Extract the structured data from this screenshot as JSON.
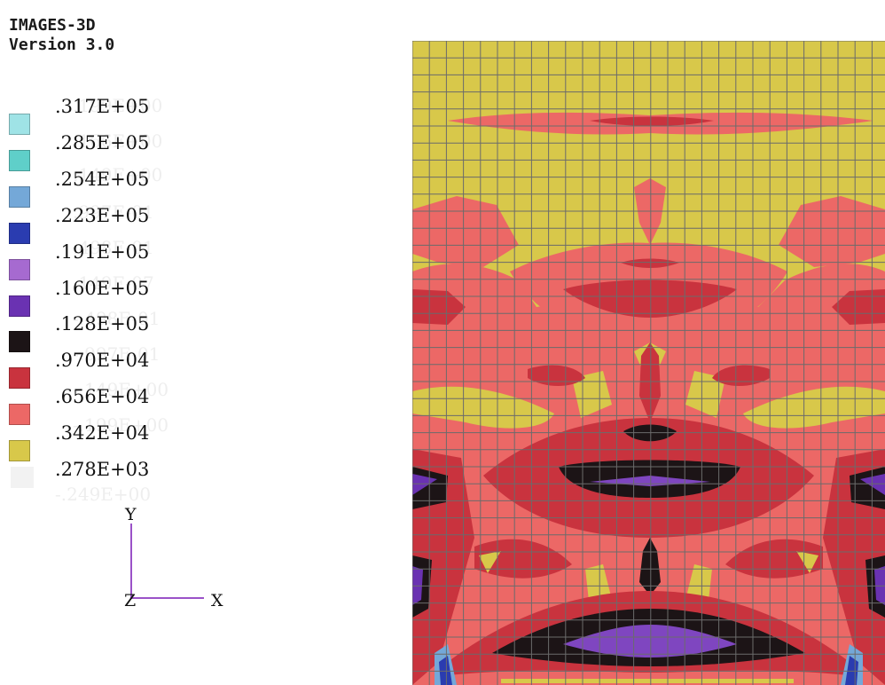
{
  "app": {
    "title": "IMAGES-3D",
    "version": "Version 3.0"
  },
  "legend": {
    "entries": [
      {
        "value": ".317E+05",
        "color": "#9fe3e6"
      },
      {
        "value": ".285E+05",
        "color": "#5fcfc9"
      },
      {
        "value": ".254E+05",
        "color": "#74a8d8"
      },
      {
        "value": ".223E+05",
        "color": "#2a3cb0"
      },
      {
        "value": ".191E+05",
        "color": "#a66ad0"
      },
      {
        "value": ".160E+05",
        "color": "#6a32b2"
      },
      {
        "value": ".128E+05",
        "color": "#1c1416"
      },
      {
        "value": ".970E+04",
        "color": "#c9333e"
      },
      {
        "value": ".656E+04",
        "color": "#ec6866"
      },
      {
        "value": ".342E+04",
        "color": "#d8c84a"
      },
      {
        "value": ".278E+03",
        "color": null
      }
    ]
  },
  "axes": {
    "y": "Y",
    "x": "X",
    "z": "Z"
  },
  "colors": {
    "yellow": "#d8c84a",
    "salmon": "#ec6866",
    "red": "#c9333e",
    "black": "#1c1416",
    "purple": "#6a32b2",
    "violet": "#a66ad0",
    "blue": "#74a8d8",
    "grid": "#6b6b6b"
  }
}
